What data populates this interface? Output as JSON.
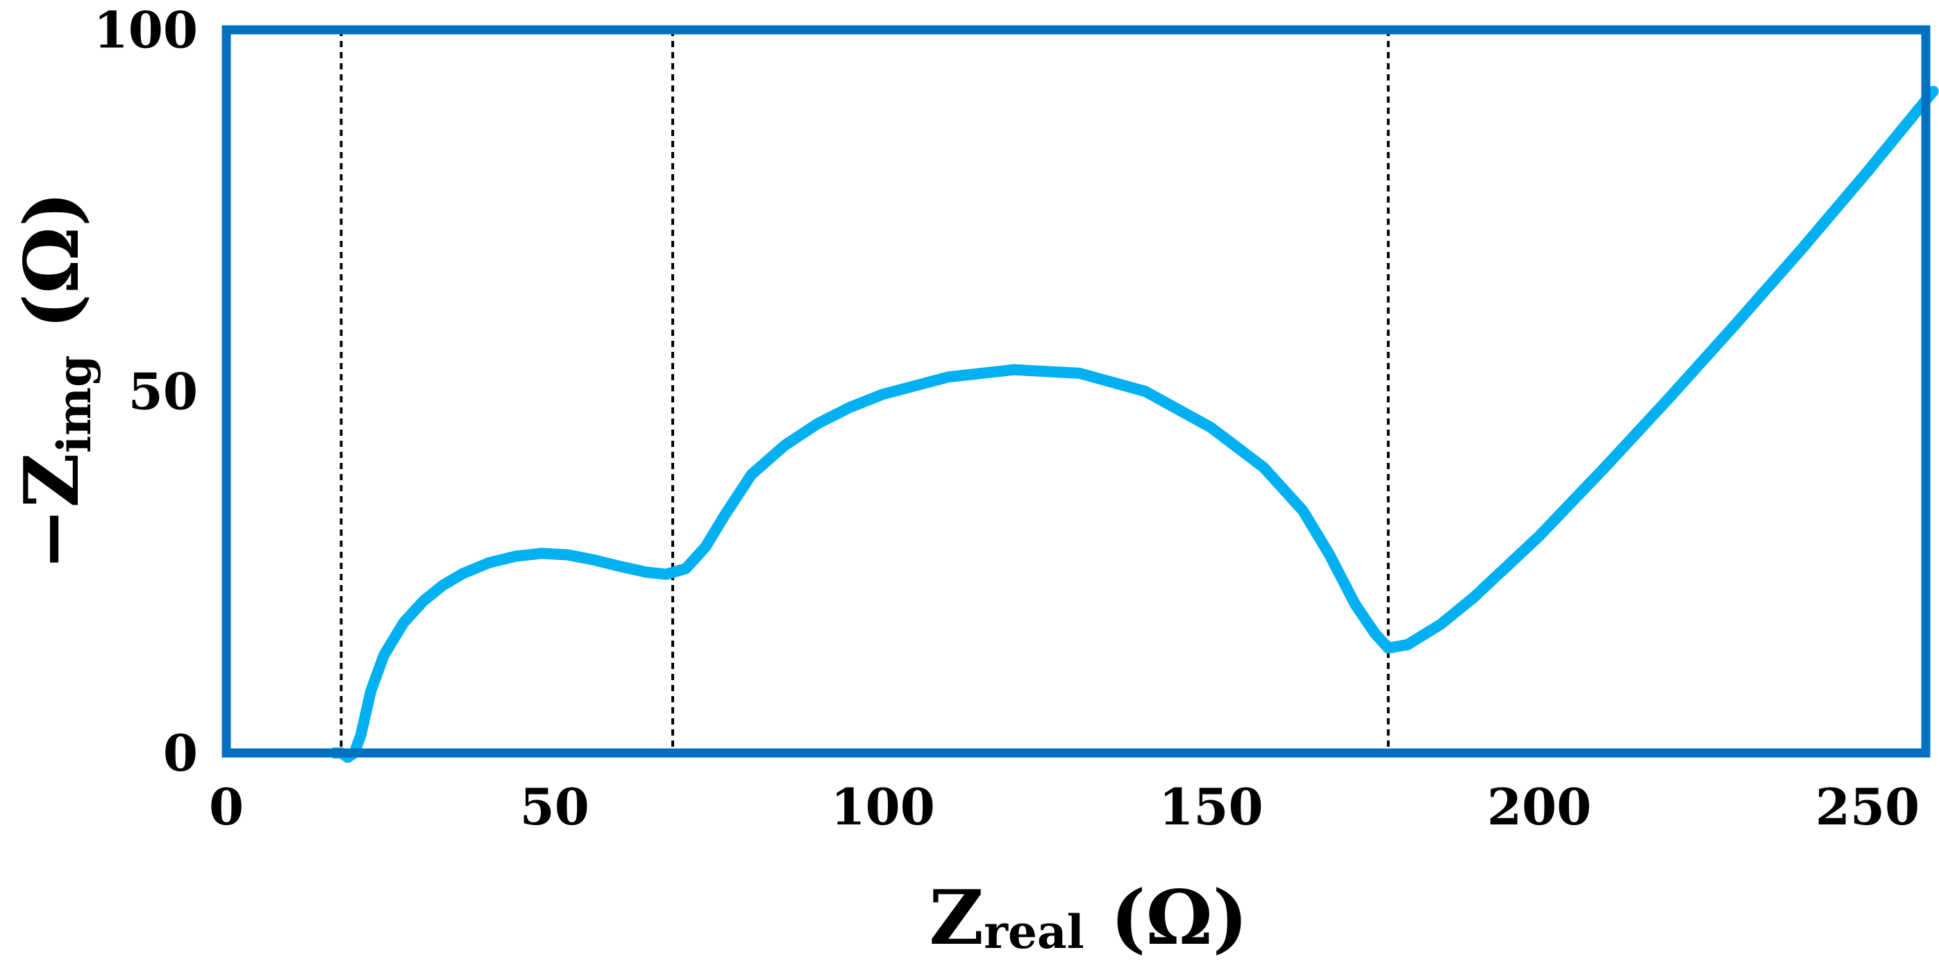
{
  "chart_data": {
    "type": "line",
    "title": "",
    "xlabel": {
      "main": "Z",
      "sub": "real",
      "unit": " (Ω)"
    },
    "ylabel": {
      "main": "−Z",
      "sub": "img",
      "unit": " (Ω)"
    },
    "xlim": [
      0,
      270
    ],
    "ylim": [
      0,
      100
    ],
    "xticks": [
      0,
      50,
      100,
      150,
      200,
      250
    ],
    "yticks": [
      0,
      50,
      100
    ],
    "grid": false,
    "legend": "none",
    "colors": {
      "frame": "#0070C0",
      "series": "#00B0F0",
      "guide": "#000000"
    },
    "vlines": [
      17.5,
      68,
      177
    ],
    "series": [
      {
        "x": [
          16.5,
          17.5,
          18.5,
          19.5,
          20.5,
          22,
          24,
          27,
          30,
          33,
          36,
          40,
          44,
          48,
          52,
          56,
          60,
          64,
          67,
          70,
          73,
          76,
          80,
          85,
          90,
          95,
          100,
          110,
          120,
          130,
          140,
          150,
          158,
          164,
          168,
          172,
          175,
          177,
          180,
          185,
          190,
          200,
          210,
          220,
          230,
          240,
          250,
          260
        ],
        "y": [
          0,
          0,
          -0.6,
          0,
          2.5,
          8.5,
          13.5,
          18,
          21,
          23.2,
          24.8,
          26.3,
          27.2,
          27.6,
          27.4,
          26.7,
          25.8,
          25,
          24.7,
          25.5,
          28.5,
          33,
          38.5,
          42.5,
          45.5,
          47.8,
          49.6,
          52,
          53,
          52.5,
          50,
          45,
          39.5,
          33.5,
          27.5,
          20.5,
          16.5,
          14.5,
          15,
          17.8,
          21.5,
          30,
          39.5,
          49.3,
          59.4,
          69.7,
          80.4,
          91.5
        ]
      }
    ]
  }
}
